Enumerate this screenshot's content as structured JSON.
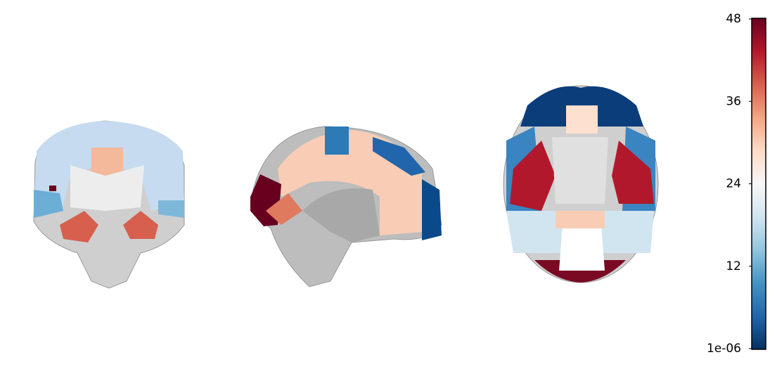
{
  "chart_data": {
    "type": "colorbar",
    "ylim": [
      1e-06,
      48
    ],
    "yticks": [
      {
        "value": 1e-06,
        "label": "1e-06"
      },
      12,
      24,
      36,
      48
    ]
  }
}
